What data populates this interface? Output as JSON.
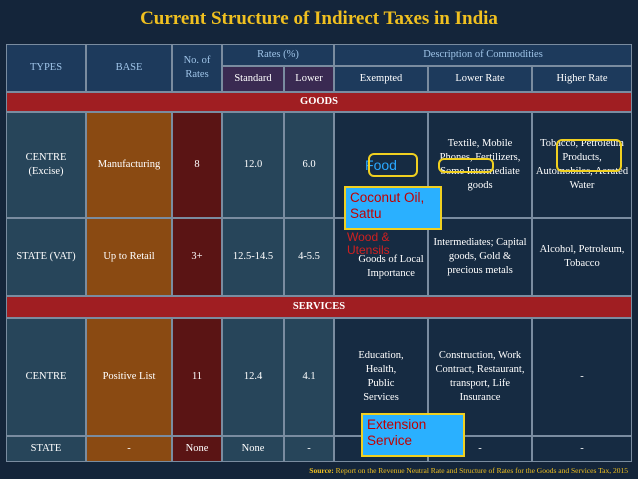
{
  "title": "Current Structure of Indirect Taxes in India",
  "headers": {
    "types": "TYPES",
    "base": "BASE",
    "no_of_rates": "No. of Rates",
    "rates_group": "Rates (%)",
    "standard": "Standard",
    "lower": "Lower",
    "desc_group": "Description of Commodities",
    "exempted": "Exempted",
    "lower_rate": "Lower Rate",
    "higher_rate": "Higher Rate"
  },
  "sections": {
    "goods": "GOODS",
    "services": "SERVICES"
  },
  "rows": [
    {
      "type": "CENTRE (Excise)",
      "base": "Manufacturing",
      "num": "8",
      "standard": "12.0",
      "lower": "6.0",
      "exempted": "Food",
      "lower_rate": "Textile, Mobile Phones, Fertilizers, Some Intermediate goods",
      "higher_rate": "Tobacco, Petroleum Products, Automobiles, Aerated Water"
    },
    {
      "type": "STATE (VAT)",
      "base": "Up to Retail",
      "num": "3+",
      "standard": "12.5-14.5",
      "lower": "4-5.5",
      "exempted": "Goods of Local Importance",
      "lower_rate": "Intermediates; Capital goods, Gold & precious metals",
      "higher_rate": "Alcohol, Petroleum, Tobacco"
    },
    {
      "type": "CENTRE",
      "base": "Positive List",
      "num": "11",
      "standard": "12.4",
      "lower": "4.1",
      "exempted": "Education, Health, Public Services",
      "lower_rate": "Construction, Work Contract, Restaurant, transport, Life Insurance",
      "higher_rate": "-"
    },
    {
      "type": "STATE",
      "base": "-",
      "num": "None",
      "standard": "None",
      "lower": "-",
      "exempted": "",
      "lower_rate": "-",
      "higher_rate": "-"
    }
  ],
  "annotations": {
    "coconut": "Coconut Oil, Sattu",
    "overlap_text": "Wood & Utensils",
    "extension": "Extension Service"
  },
  "source": {
    "label": "Source:",
    "text": " Report on the Revenue Neutral Rate and Structure of Rates for the Goods and Services Tax, 2015"
  }
}
